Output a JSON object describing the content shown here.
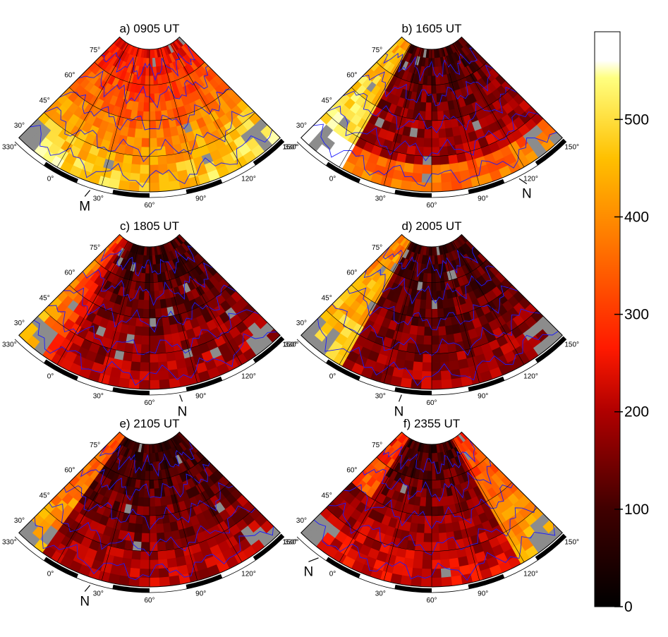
{
  "panels": [
    {
      "title": "a) 0905 UT",
      "marker": "M",
      "marker_at_mlt_deg": 45,
      "pattern": "a"
    },
    {
      "title": "b) 1605 UT",
      "marker": "N",
      "marker_at_mlt_deg": 120,
      "pattern": "b"
    },
    {
      "title": "c) 1805 UT",
      "marker": "N",
      "marker_at_mlt_deg": 90,
      "pattern": "c"
    },
    {
      "title": "d) 2005 UT",
      "marker": "N",
      "marker_at_mlt_deg": 60,
      "pattern": "d"
    },
    {
      "title": "e) 2105 UT",
      "marker": "N",
      "marker_at_mlt_deg": 45,
      "pattern": "e"
    },
    {
      "title": "f) 2355 UT",
      "marker": "N",
      "marker_at_mlt_deg": 15,
      "pattern": "f"
    }
  ],
  "map_grid": {
    "latitude_labels": [
      "75°",
      "60°",
      "45°",
      "30°"
    ],
    "longitude_labels": [
      "330°",
      "0°",
      "30°",
      "60°",
      "90°",
      "120°",
      "150°"
    ]
  },
  "colorbar": {
    "ticks": [
      {
        "value": 0,
        "label": "0"
      },
      {
        "value": 100,
        "label": "100"
      },
      {
        "value": 200,
        "label": "200"
      },
      {
        "value": 300,
        "label": "300"
      },
      {
        "value": 400,
        "label": "400"
      },
      {
        "value": 500,
        "label": "500"
      }
    ],
    "range": [
      0,
      590
    ],
    "colormap": "black-red-yellow-white (hot)"
  },
  "colors": {
    "coastline": "#1a1aff",
    "no_data": "#8c8c8c",
    "grid": "#000000"
  }
}
